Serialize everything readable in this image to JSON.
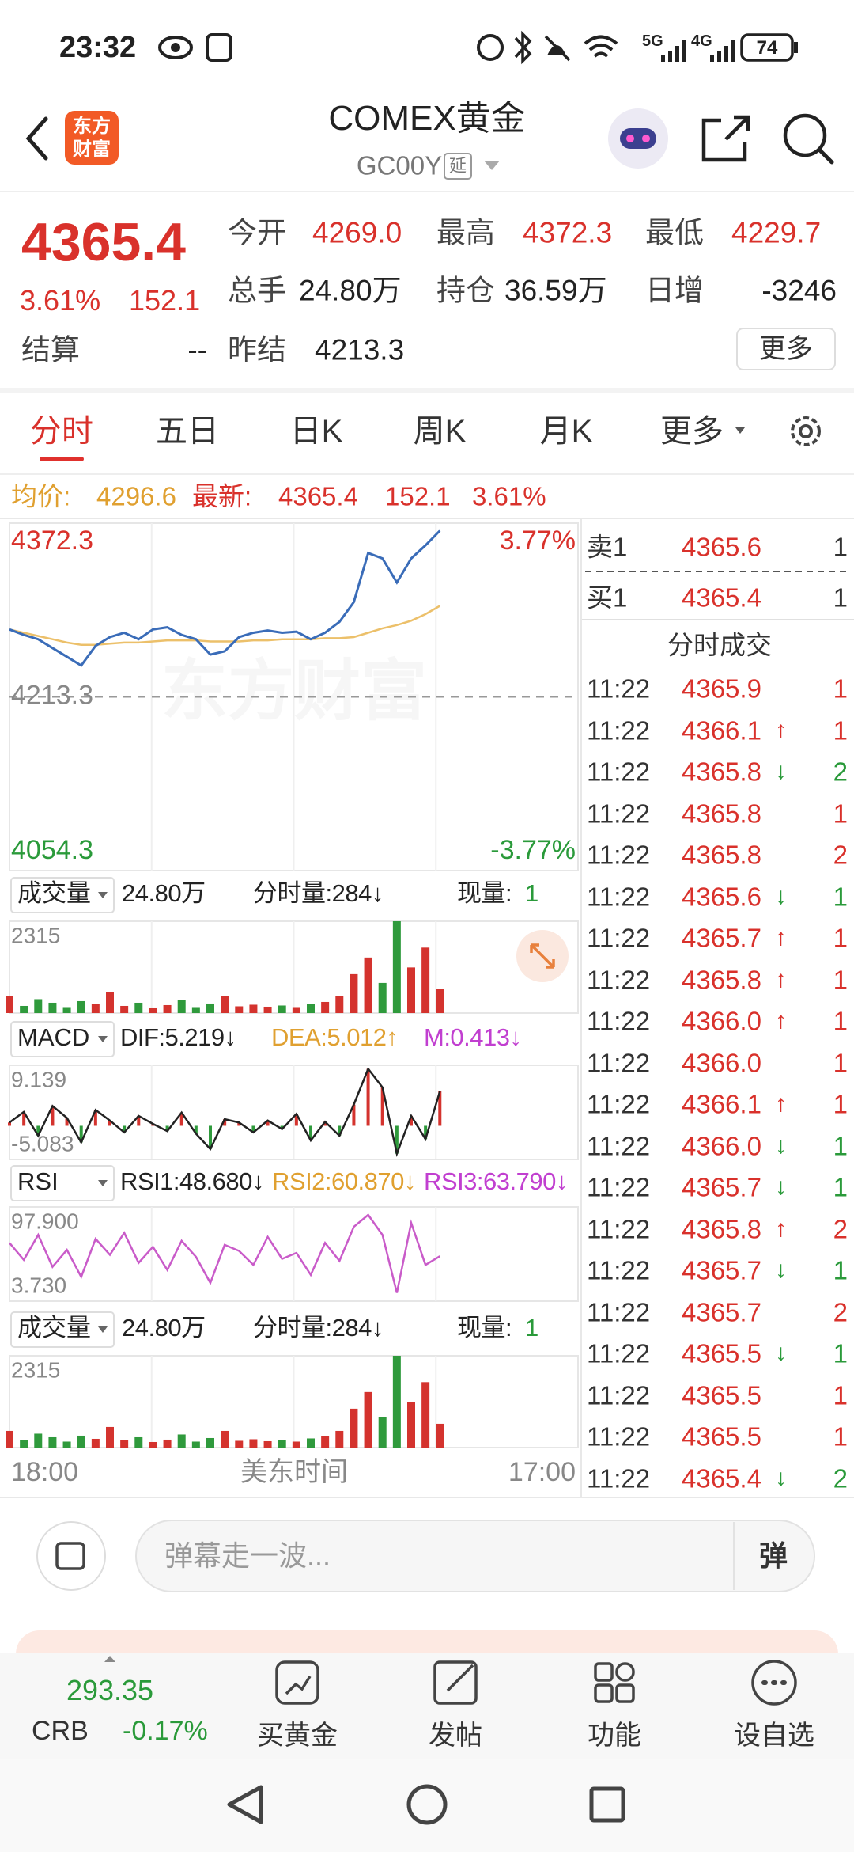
{
  "status_bar": {
    "time": "23:32",
    "network1": "5G",
    "network2": "4G",
    "battery": "74"
  },
  "header": {
    "logo": [
      "东方",
      "财富"
    ],
    "title": "COMEX黄金",
    "code": "GC00Y",
    "delay_tag": "延"
  },
  "quote": {
    "price": "4365.4",
    "change_pct": "3.61%",
    "change": "152.1",
    "fields": [
      {
        "label": "今开",
        "value": "4269.0"
      },
      {
        "label": "最高",
        "value": "4372.3"
      },
      {
        "label": "最低",
        "value": "4229.7"
      },
      {
        "label": "总手",
        "value": "24.80万"
      },
      {
        "label": "持仓",
        "value": "36.59万"
      },
      {
        "label": "日增",
        "value": "-3246"
      },
      {
        "label": "结算",
        "value": "--"
      },
      {
        "label": "昨结",
        "value": "4213.3"
      }
    ],
    "more_button": "更多"
  },
  "tabs": [
    "分时",
    "五日",
    "日K",
    "周K",
    "月K",
    "更多"
  ],
  "summary": {
    "avg_label": "均价:",
    "avg": "4296.6",
    "latest_label": "最新:",
    "latest": "4365.4",
    "change": "152.1",
    "change_pct": "3.61%"
  },
  "intraday": {
    "ylim": [
      4054.3,
      4372.3
    ],
    "prev_close": 4213.3,
    "up_pct": "3.77%",
    "down_pct": "-3.77%",
    "watermark": "东方财富",
    "price": [
      4275,
      4270,
      4266,
      4258,
      4250,
      4242,
      4260,
      4268,
      4272,
      4266,
      4275,
      4277,
      4270,
      4266,
      4252,
      4255,
      4268,
      4272,
      4274,
      4272,
      4273,
      4266,
      4272,
      4282,
      4300,
      4345,
      4340,
      4318,
      4340,
      4352,
      4365.4
    ],
    "avg": [
      4275,
      4272,
      4269,
      4266,
      4263,
      4261,
      4261,
      4262,
      4263,
      4263,
      4264,
      4265,
      4265,
      4265,
      4264,
      4264,
      4264,
      4265,
      4265,
      4266,
      4266,
      4266,
      4267,
      4267,
      4268,
      4272,
      4276,
      4279,
      4283,
      4289,
      4296.6
    ],
    "volume_panel": {
      "selector": "成交量",
      "total": "24.80万",
      "tick_volume": "分时量:284↓",
      "current_label": "现量:",
      "current": "1"
    },
    "vlim": [
      0,
      2315
    ],
    "volume": [
      420,
      180,
      350,
      260,
      150,
      300,
      220,
      520,
      180,
      260,
      140,
      200,
      330,
      150,
      240,
      420,
      170,
      210,
      160,
      190,
      150,
      230,
      280,
      420,
      980,
      1400,
      760,
      2315,
      1150,
      1650,
      600
    ],
    "macd_panel": {
      "name": "MACD",
      "dif": "DIF:5.219↓",
      "dea": "DEA:5.012↑",
      "m": "M:0.413↓"
    },
    "macd_lim": [
      -5.083,
      9.139
    ],
    "macd": [
      0.5,
      2.1,
      -1.5,
      3.0,
      1.2,
      -2.5,
      2.4,
      0.8,
      -1.0,
      1.5,
      0.3,
      -0.8,
      2.0,
      -1.2,
      -3.5,
      1.0,
      0.5,
      -1.0,
      0.8,
      -0.5,
      1.8,
      -2.2,
      0.6,
      -1.5,
      3.2,
      8.6,
      5.8,
      -4.2,
      1.5,
      -2.0,
      5.2
    ],
    "rsi_panel": {
      "name": "RSI",
      "rsi1": "RSI1:48.680↓",
      "rsi2": "RSI2:60.870↓",
      "rsi3": "RSI3:63.790↓"
    },
    "rsi_lim": [
      {
        "value": 3.73,
        "label": "3.730"
      },
      {
        "value": 97.9,
        "label": "97.900"
      }
    ],
    "rsi": [
      62,
      45,
      70,
      38,
      55,
      28,
      66,
      50,
      72,
      42,
      58,
      35,
      64,
      48,
      22,
      60,
      54,
      40,
      68,
      46,
      52,
      30,
      62,
      44,
      78,
      90,
      70,
      12,
      82,
      40,
      48.68
    ],
    "time_labels": [
      "18:00",
      "美东时间",
      "17:00"
    ]
  },
  "order_book": [
    {
      "label": "卖1",
      "price": "4365.6",
      "volume": "1"
    },
    {
      "label": "买1",
      "price": "4365.4",
      "volume": "1"
    }
  ],
  "trades_title": "分时成交",
  "trades": [
    {
      "time": "11:22",
      "price": "4365.9",
      "volume": "1"
    },
    {
      "time": "11:22",
      "price": "4366.1",
      "arrow": "↑",
      "volume": "1"
    },
    {
      "time": "11:22",
      "price": "4365.8",
      "arrow": "↓",
      "volume": "2"
    },
    {
      "time": "11:22",
      "price": "4365.8",
      "volume": "1"
    },
    {
      "time": "11:22",
      "price": "4365.8",
      "volume": "2"
    },
    {
      "time": "11:22",
      "price": "4365.6",
      "arrow": "↓",
      "volume": "1"
    },
    {
      "time": "11:22",
      "price": "4365.7",
      "arrow": "↑",
      "volume": "1"
    },
    {
      "time": "11:22",
      "price": "4365.8",
      "arrow": "↑",
      "volume": "1"
    },
    {
      "time": "11:22",
      "price": "4366.0",
      "arrow": "↑",
      "volume": "1"
    },
    {
      "time": "11:22",
      "price": "4366.0",
      "volume": "1"
    },
    {
      "time": "11:22",
      "price": "4366.1",
      "arrow": "↑",
      "volume": "1"
    },
    {
      "time": "11:22",
      "price": "4366.0",
      "arrow": "↓",
      "volume": "1"
    },
    {
      "time": "11:22",
      "price": "4365.7",
      "arrow": "↓",
      "volume": "1"
    },
    {
      "time": "11:22",
      "price": "4365.8",
      "arrow": "↑",
      "volume": "2"
    },
    {
      "time": "11:22",
      "price": "4365.7",
      "arrow": "↓",
      "volume": "1"
    },
    {
      "time": "11:22",
      "price": "4365.7",
      "volume": "2"
    },
    {
      "time": "11:22",
      "price": "4365.5",
      "arrow": "↓",
      "volume": "1"
    },
    {
      "time": "11:22",
      "price": "4365.5",
      "volume": "1"
    },
    {
      "time": "11:22",
      "price": "4365.5",
      "volume": "1"
    },
    {
      "time": "11:22",
      "price": "4365.4",
      "arrow": "↓",
      "volume": "2"
    }
  ],
  "comment_placeholder": "弹幕走一波...",
  "comment_button": "弹",
  "bottom_nav": {
    "index_value": "293.35",
    "index_name": "CRB",
    "index_change": "-0.17%",
    "items": [
      "买黄金",
      "发帖",
      "功能",
      "设自选"
    ]
  }
}
